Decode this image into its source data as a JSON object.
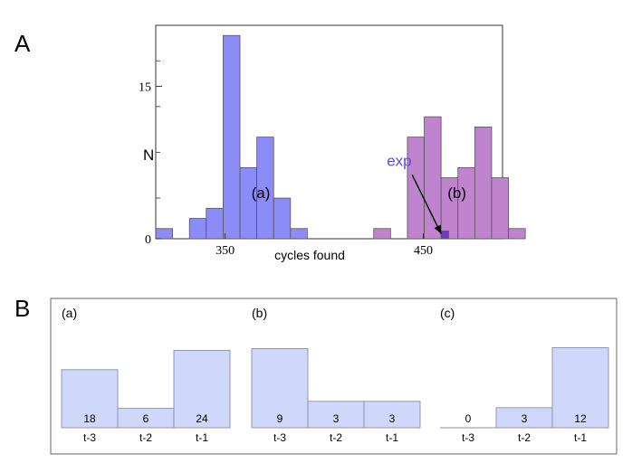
{
  "panel_a_label": "A",
  "panel_b_label": "B",
  "chart_data": [
    {
      "type": "bar",
      "panel": "A",
      "title": "",
      "xlabel": "cycles found",
      "ylabel": "N",
      "xlim": [
        315,
        490
      ],
      "ylim": [
        0,
        21
      ],
      "xticks": [
        350,
        450
      ],
      "yticks": [
        0,
        15
      ],
      "bin_width": 8.5,
      "series": [
        {
          "name": "(a)",
          "color": "#8b8cf8",
          "bins": [
            {
              "x0": 315,
              "count": 1
            },
            {
              "x0": 332,
              "count": 2
            },
            {
              "x0": 340.5,
              "count": 3
            },
            {
              "x0": 349,
              "count": 20
            },
            {
              "x0": 357.5,
              "count": 7
            },
            {
              "x0": 366,
              "count": 10
            },
            {
              "x0": 374.5,
              "count": 4
            },
            {
              "x0": 383,
              "count": 1
            }
          ]
        },
        {
          "name": "(b)",
          "color": "#c084cf",
          "bins": [
            {
              "x0": 425,
              "count": 1
            },
            {
              "x0": 442,
              "count": 10
            },
            {
              "x0": 450.5,
              "count": 12
            },
            {
              "x0": 459,
              "count": 6
            },
            {
              "x0": 467.5,
              "count": 7
            },
            {
              "x0": 476,
              "count": 11
            },
            {
              "x0": 484.5,
              "count": 6
            },
            {
              "x0": 493,
              "count": 1
            }
          ]
        }
      ],
      "annotations": [
        {
          "text": "(a)",
          "x": 368,
          "y": 4
        },
        {
          "text": "(b)",
          "x": 467,
          "y": 4
        },
        {
          "text": "exp",
          "x": 438,
          "y": 7,
          "arrow_to": {
            "x": 459,
            "y": 0.5
          },
          "color": "#5a4de0"
        }
      ],
      "exp_marker": {
        "x0": 459,
        "x1": 463,
        "count": 0.8,
        "color": "#6a3cc0"
      }
    },
    {
      "type": "bar",
      "panel": "B(a)",
      "label": "(a)",
      "categories": [
        "t-3",
        "t-2",
        "t-1"
      ],
      "values": [
        18,
        6,
        24
      ],
      "ylim": [
        0,
        30
      ]
    },
    {
      "type": "bar",
      "panel": "B(b)",
      "label": "(b)",
      "categories": [
        "t-3",
        "t-2",
        "t-1"
      ],
      "values": [
        9,
        3,
        3
      ],
      "ylim": [
        0,
        11
      ]
    },
    {
      "type": "bar",
      "panel": "B(c)",
      "label": "(c)",
      "categories": [
        "t-3",
        "t-2",
        "t-1"
      ],
      "values": [
        0,
        3,
        12
      ],
      "ylim": [
        0,
        14.5
      ]
    }
  ]
}
